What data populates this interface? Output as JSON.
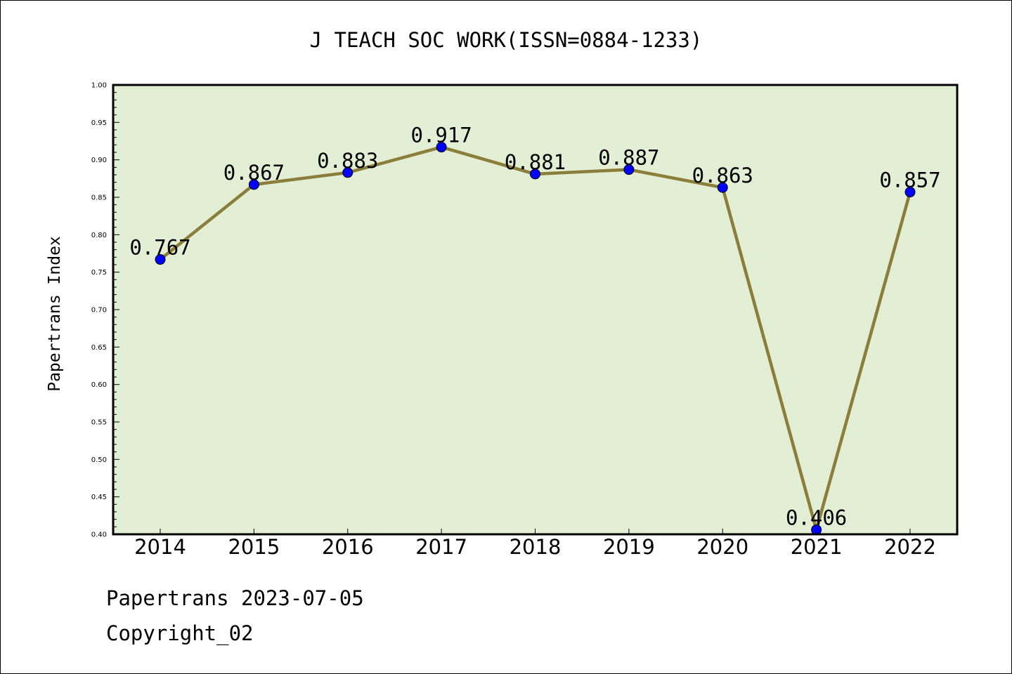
{
  "chart_data": {
    "type": "line",
    "title": "J TEACH SOC WORK(ISSN=0884-1233)",
    "xlabel": "",
    "ylabel": "Papertrans Index",
    "categories": [
      "2014",
      "2015",
      "2016",
      "2017",
      "2018",
      "2019",
      "2020",
      "2021",
      "2022"
    ],
    "series": [
      {
        "values": [
          0.767,
          0.867,
          0.883,
          0.917,
          0.881,
          0.887,
          0.863,
          0.406,
          0.857
        ],
        "data_labels": [
          "0.767",
          "0.867",
          "0.883",
          "0.917",
          "0.881",
          "0.887",
          "0.863",
          "0.406",
          "0.857"
        ]
      }
    ],
    "ylim": [
      0.4,
      1.0
    ],
    "yticks": [
      "0.40",
      "0.45",
      "0.50",
      "0.55",
      "0.60",
      "0.65",
      "0.70",
      "0.75",
      "0.80",
      "0.85",
      "0.90",
      "0.95",
      "1.00"
    ],
    "grid": false,
    "legend": "none",
    "colors": {
      "plot_background": "#e2efd4",
      "line": "#8b7d3a",
      "marker": "#0000ff"
    }
  },
  "footer": {
    "line1": "Papertrans 2023-07-05",
    "line2": "Copyright_02"
  }
}
